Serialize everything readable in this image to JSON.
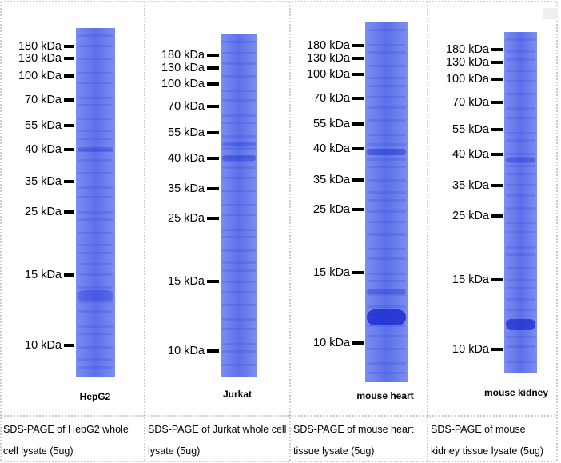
{
  "panels": [
    {
      "markers": [
        "180 kDa",
        "130 kDa",
        "100 kDa",
        "70 kDa",
        "55 kDa",
        "40 kDa",
        "35 kDa",
        "25 kDa",
        "15 kDa",
        "10 kDa"
      ],
      "sample": "HepG2",
      "caption": "SDS-PAGE of HepG2 whole cell lysate (5ug)"
    },
    {
      "markers": [
        "180 kDa",
        "130 kDa",
        "100 kDa",
        "70 kDa",
        "55 kDa",
        "40 kDa",
        "35 kDa",
        "25 kDa",
        "15 kDa",
        "10 kDa"
      ],
      "sample": "Jurkat",
      "caption": "SDS-PAGE of Jurkat whole cell lysate (5ug)"
    },
    {
      "markers": [
        "180 kDa",
        "130 kDa",
        "100 kDa",
        "70 kDa",
        "55 kDa",
        "40 kDa",
        "35 kDa",
        "25 kDa",
        "15 kDa",
        "10 kDa"
      ],
      "sample": "mouse heart",
      "caption": "SDS-PAGE of mouse heart tissue lysate (5ug)"
    },
    {
      "markers": [
        "180 kDa",
        "130 kDa",
        "100 kDa",
        "70 kDa",
        "55 kDa",
        "40 kDa",
        "35 kDa",
        "25 kDa",
        "15 kDa",
        "10 kDa"
      ],
      "sample": "mouse kidney",
      "caption": "SDS-PAGE of mouse kidney tissue lysate (5ug)"
    }
  ]
}
